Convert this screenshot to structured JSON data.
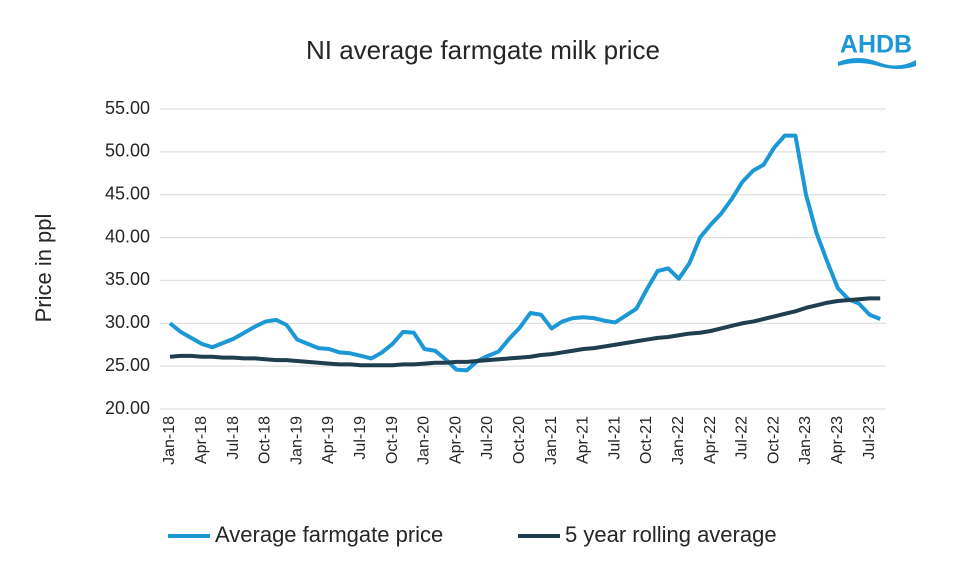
{
  "logo": "AHDB",
  "chart_data": {
    "type": "line",
    "title": "NI average farmgate milk price",
    "y_label": "Price in ppl",
    "categories": [
      "Jan-18",
      null,
      null,
      "Apr-18",
      null,
      null,
      "Jul-18",
      null,
      null,
      "Oct-18",
      null,
      null,
      "Jan-19",
      null,
      null,
      "Apr-19",
      null,
      null,
      "Jul-19",
      null,
      null,
      "Oct-19",
      null,
      null,
      "Jan-20",
      null,
      null,
      "Apr-20",
      null,
      null,
      "Jul-20",
      null,
      null,
      "Oct-20",
      null,
      null,
      "Jan-21",
      null,
      null,
      "Apr-21",
      null,
      null,
      "Jul-21",
      null,
      null,
      "Oct-21",
      null,
      null,
      "Jan-22",
      null,
      null,
      "Apr-22",
      null,
      null,
      "Jul-22",
      null,
      null,
      "Oct-22",
      null,
      null,
      "Jan-23",
      null,
      null,
      "Apr-23",
      null,
      null,
      "Jul-23",
      null
    ],
    "series": [
      {
        "name": "Average farmgate price",
        "color": "#1b98d5",
        "values": [
          30.0,
          29.0,
          28.3,
          27.6,
          27.2,
          27.7,
          28.2,
          28.9,
          29.6,
          30.2,
          30.4,
          29.8,
          28.1,
          27.6,
          27.1,
          27.0,
          26.6,
          26.5,
          26.2,
          25.9,
          26.6,
          27.6,
          29.0,
          28.9,
          27.0,
          26.8,
          25.8,
          24.6,
          24.5,
          25.6,
          26.2,
          26.7,
          28.2,
          29.5,
          31.2,
          31.0,
          29.4,
          30.2,
          30.6,
          30.7,
          30.6,
          30.3,
          30.1,
          30.9,
          31.7,
          34.0,
          36.1,
          36.4,
          35.2,
          37.0,
          40.0,
          41.5,
          42.8,
          44.5,
          46.5,
          47.8,
          48.5,
          50.5,
          51.9,
          51.9,
          45.0,
          40.5,
          37.2,
          34.1,
          32.8,
          32.3,
          31.0,
          30.5
        ]
      },
      {
        "name": "5 year rolling average",
        "color": "#1f3f4f",
        "values": [
          26.1,
          26.2,
          26.2,
          26.1,
          26.1,
          26.0,
          26.0,
          25.9,
          25.9,
          25.8,
          25.7,
          25.7,
          25.6,
          25.5,
          25.4,
          25.3,
          25.2,
          25.2,
          25.1,
          25.1,
          25.1,
          25.1,
          25.2,
          25.2,
          25.3,
          25.4,
          25.4,
          25.5,
          25.5,
          25.6,
          25.7,
          25.8,
          25.9,
          26.0,
          26.1,
          26.3,
          26.4,
          26.6,
          26.8,
          27.0,
          27.1,
          27.3,
          27.5,
          27.7,
          27.9,
          28.1,
          28.3,
          28.4,
          28.6,
          28.8,
          28.9,
          29.1,
          29.4,
          29.7,
          30.0,
          30.2,
          30.5,
          30.8,
          31.1,
          31.4,
          31.8,
          32.1,
          32.4,
          32.6,
          32.7,
          32.8,
          32.9,
          32.9
        ]
      }
    ],
    "ylim": [
      20,
      55
    ],
    "yticks": [
      {
        "value": 20,
        "label": "20.00"
      },
      {
        "value": 25,
        "label": "25.00"
      },
      {
        "value": 30,
        "label": "30.00"
      },
      {
        "value": 35,
        "label": "35.00"
      },
      {
        "value": 40,
        "label": "40.00"
      },
      {
        "value": 45,
        "label": "45.00"
      },
      {
        "value": 50,
        "label": "50.00"
      },
      {
        "value": 55,
        "label": "55.00"
      }
    ],
    "grid": true,
    "legend": "bottom"
  }
}
